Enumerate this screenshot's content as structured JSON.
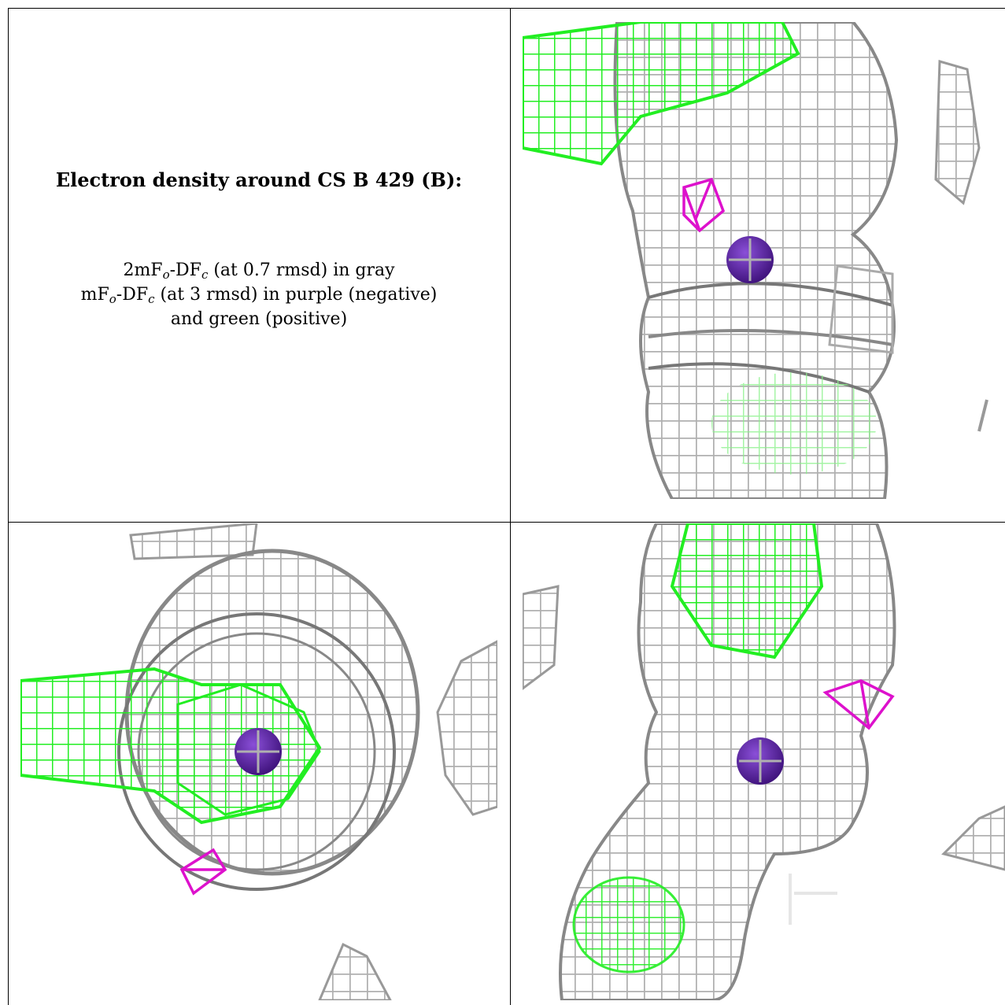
{
  "caption": {
    "title": "Electron density around CS B 429 (B):",
    "line1_parts": [
      "2mF",
      "o",
      "-DF",
      "c",
      " (at 0.7 rmsd) in gray"
    ],
    "line2_parts": [
      "mF",
      "o",
      "-DF",
      "c",
      " (at 3 rmsd) in purple (negative)"
    ],
    "line3": "and green (positive)"
  },
  "colors": {
    "gray_mesh": "#b8b8b8",
    "dark_mesh": "#7a7a7a",
    "green_mesh": "#22ee22",
    "magenta_mesh": "#dd11cc",
    "atom": "#5a1f9e"
  },
  "panels": [
    "view-top-right",
    "view-bottom-left",
    "view-bottom-right"
  ]
}
